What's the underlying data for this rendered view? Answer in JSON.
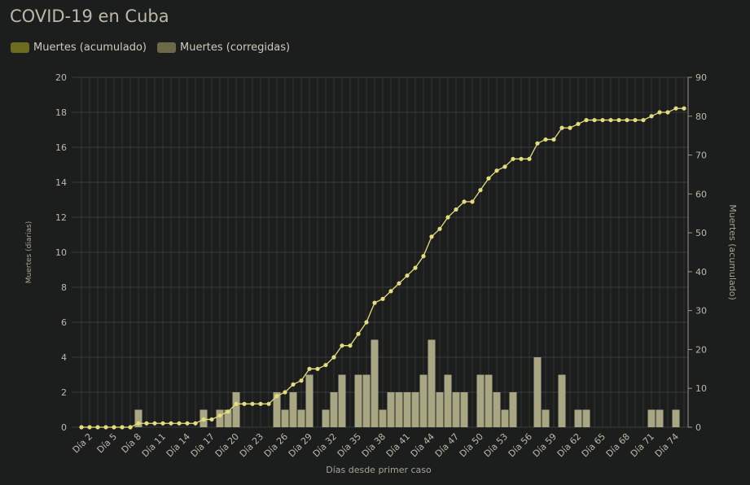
{
  "colors": {
    "background": "#1c1d1d",
    "bar": "#a9a684",
    "line": "#e4dd7c",
    "legend_acumulado": "#6d6b1f",
    "legend_corregidas": "#6b6947",
    "grid": "#333434",
    "text": "#bdb8a8"
  },
  "chart_data": {
    "type": "bar+line",
    "title": "COVID-19 en Cuba",
    "legend": [
      "Muertes (acumulado)",
      "Muertes (corregidas)"
    ],
    "legend_placement": "top-left",
    "xlabel": "Días desde primer caso",
    "ylabel_left": "Muertes (diarias)",
    "ylabel_right": "Muertes (acumulado)",
    "ylim_left": [
      0,
      20
    ],
    "ylim_right": [
      0,
      90
    ],
    "yticks_left": [
      "0",
      "2",
      "4",
      "6",
      "8",
      "10",
      "12",
      "14",
      "16",
      "18",
      "20"
    ],
    "yticks_right": [
      "0",
      "10",
      "20",
      "30",
      "40",
      "50",
      "60",
      "70",
      "80",
      "90"
    ],
    "xtick_labels": [
      "Día 2",
      "Día 5",
      "Día 8",
      "Día 11",
      "Día 14",
      "Día 17",
      "Día 20",
      "Día 23",
      "Día 26",
      "Día 29",
      "Día 32",
      "Día 35",
      "Día 38",
      "Día 41",
      "Día 44",
      "Día 47",
      "Día 50",
      "Día 53",
      "Día 56",
      "Día 59",
      "Día 62",
      "Día 65",
      "Día 68",
      "Día 71",
      "Día 74"
    ],
    "days": [
      1,
      2,
      3,
      4,
      5,
      6,
      7,
      8,
      9,
      10,
      11,
      12,
      13,
      14,
      15,
      16,
      17,
      18,
      19,
      20,
      21,
      22,
      23,
      24,
      25,
      26,
      27,
      28,
      29,
      30,
      31,
      32,
      33,
      34,
      35,
      36,
      37,
      38,
      39,
      40,
      41,
      42,
      43,
      44,
      45,
      46,
      47,
      48,
      49,
      50,
      51,
      52,
      53,
      54,
      55,
      56,
      57,
      58,
      59,
      60,
      61,
      62,
      63,
      64,
      65,
      66,
      67,
      68,
      69,
      70,
      71,
      72,
      73,
      74,
      75
    ],
    "series": [
      {
        "name": "Muertes (corregidas)",
        "type": "bar",
        "axis": "left",
        "values": [
          0,
          0,
          0,
          0,
          0,
          0,
          0,
          1,
          0,
          0,
          0,
          0,
          0,
          0,
          0,
          1,
          0,
          1,
          1,
          2,
          0,
          0,
          0,
          0,
          2,
          1,
          2,
          1,
          3,
          0,
          1,
          2,
          3,
          0,
          3,
          3,
          5,
          1,
          2,
          2,
          2,
          2,
          3,
          5,
          2,
          3,
          2,
          2,
          0,
          3,
          3,
          2,
          1,
          2,
          0,
          0,
          4,
          1,
          0,
          3,
          0,
          1,
          1,
          0,
          0,
          0,
          0,
          0,
          0,
          0,
          1,
          1,
          0,
          1,
          0
        ]
      },
      {
        "name": "Muertes (acumulado)",
        "type": "line",
        "axis": "right",
        "values": [
          0,
          0,
          0,
          0,
          0,
          0,
          0,
          1,
          1,
          1,
          1,
          1,
          1,
          1,
          1,
          2,
          2,
          3,
          4,
          6,
          6,
          6,
          6,
          6,
          8,
          9,
          11,
          12,
          15,
          15,
          16,
          18,
          21,
          21,
          24,
          27,
          32,
          33,
          35,
          37,
          39,
          41,
          44,
          49,
          51,
          54,
          56,
          58,
          58,
          61,
          64,
          66,
          67,
          69,
          69,
          69,
          73,
          74,
          74,
          77,
          77,
          78,
          79,
          79,
          79,
          79,
          79,
          79,
          79,
          79,
          80,
          81,
          81,
          82,
          82
        ]
      }
    ]
  }
}
